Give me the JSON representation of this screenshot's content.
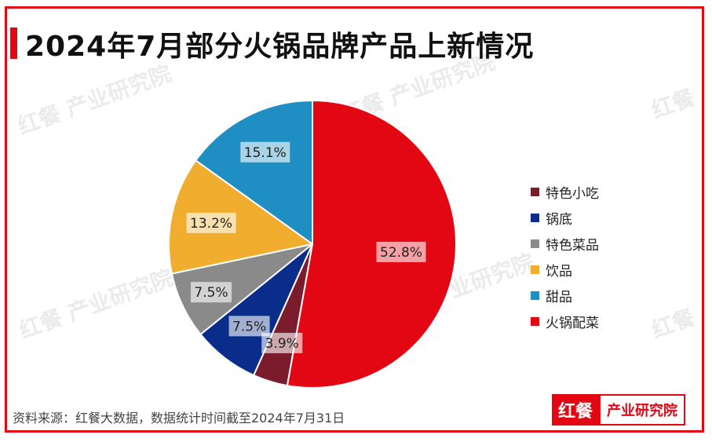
{
  "title": "2024年7月部分火锅品牌产品上新情况",
  "watermark": {
    "brand": "红餐",
    "text": "产业研究院"
  },
  "source": "资料来源：红餐大数据，数据统计时间截至2024年7月31日",
  "logo": {
    "mark": "红餐",
    "text": "产业研究院"
  },
  "chart_data": {
    "type": "pie",
    "title": "2024年7月部分火锅品牌产品上新情况",
    "legend_position": "right",
    "series": [
      {
        "name": "特色小吃",
        "value": 3.9,
        "label": "3.9%",
        "color": "#7b1c2d"
      },
      {
        "name": "锅底",
        "value": 7.5,
        "label": "7.5%",
        "color": "#0a2d8c"
      },
      {
        "name": "特色菜品",
        "value": 7.5,
        "label": "7.5%",
        "color": "#8a8a8a"
      },
      {
        "name": "饮品",
        "value": 13.2,
        "label": "13.2%",
        "color": "#f0ad2e"
      },
      {
        "name": "甜品",
        "value": 15.1,
        "label": "15.1%",
        "color": "#1f8fc3"
      },
      {
        "name": "火锅配菜",
        "value": 52.8,
        "label": "52.8%",
        "color": "#e30613"
      }
    ]
  }
}
